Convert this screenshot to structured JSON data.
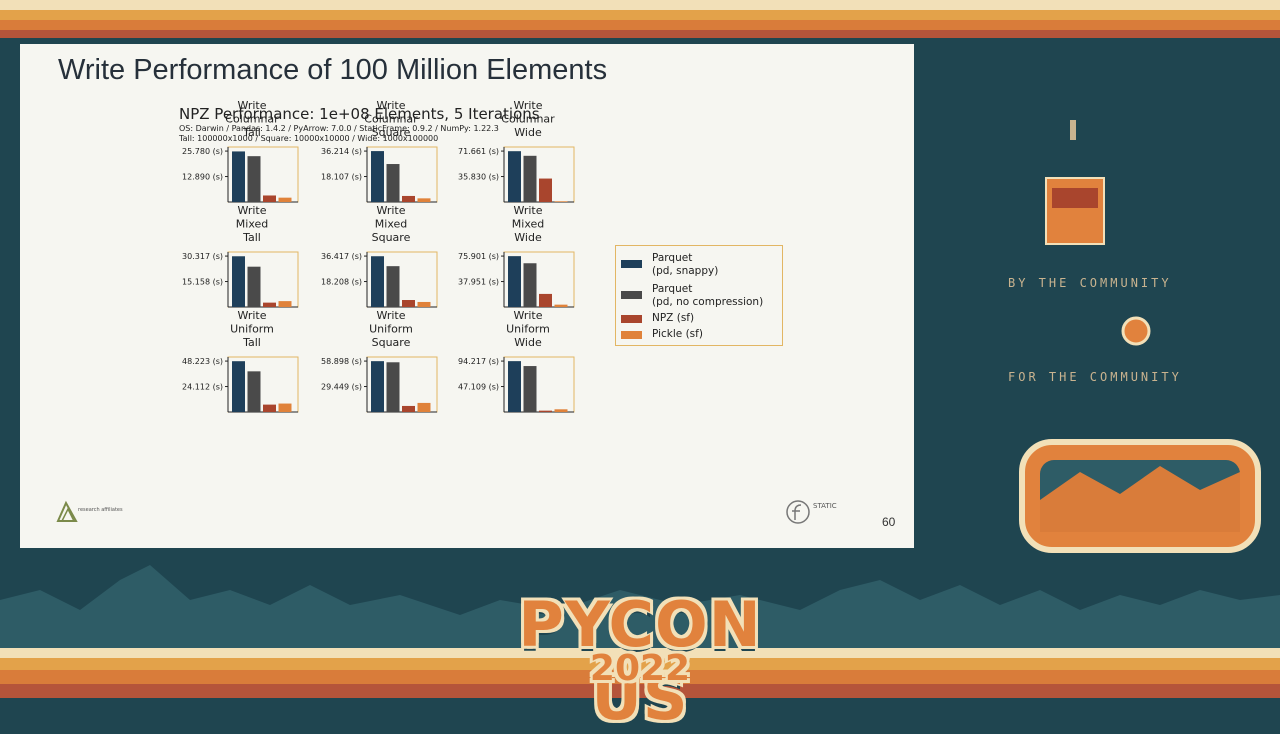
{
  "slide": {
    "title": "Write Performance of 100 Million Elements",
    "page_number": "60",
    "logo_left_text": "research affiliates",
    "logo_right_text": "STATIC"
  },
  "conference": {
    "name": "PYCON US",
    "year": "2022",
    "deco_line_1": "BY THE COMMUNITY",
    "deco_line_2": "FOR THE COMMUNITY"
  },
  "chart_data": {
    "type": "bar",
    "title": "NPZ Performance: 1e+08 Elements, 5 Iterations",
    "subtitle_lines": [
      "OS: Darwin / Pandas: 1.4.2 / PyArrow: 7.0.0 / StaticFrame: 0.9.2 / NumPy: 1.22.3",
      "Tall: 100000x1000 / Square: 10000x10000 / Wide: 1000x100000"
    ],
    "series_names": [
      "Parquet (pd, snappy)",
      "Parquet (pd, no compression)",
      "NPZ (sf)",
      "Pickle (sf)"
    ],
    "legend": [
      {
        "lines": [
          "Parquet",
          "(pd, snappy)"
        ],
        "color": "#1e3f5a"
      },
      {
        "lines": [
          "Parquet",
          "(pd, no compression)"
        ],
        "color": "#4a4a4a"
      },
      {
        "lines": [
          "NPZ (sf)"
        ],
        "color": "#a9452d"
      },
      {
        "lines": [
          "Pickle (sf)"
        ],
        "color": "#e0823a"
      }
    ],
    "legend_position": "right",
    "panels": [
      {
        "title": [
          "Write",
          "Columnar",
          "Tall"
        ],
        "ticks": [
          "25.780 (s)",
          "12.890 (s)"
        ],
        "tick_values": [
          25.78,
          12.89
        ],
        "values": [
          25.6,
          23.2,
          3.3,
          2.2
        ]
      },
      {
        "title": [
          "Write",
          "Columnar",
          "Square"
        ],
        "ticks": [
          "36.214 (s)",
          "18.107 (s)"
        ],
        "tick_values": [
          36.214,
          18.107
        ],
        "values": [
          36.2,
          27.0,
          4.3,
          2.6
        ]
      },
      {
        "title": [
          "Write",
          "Columnar",
          "Wide"
        ],
        "ticks": [
          "71.661 (s)",
          "35.830 (s)"
        ],
        "tick_values": [
          71.661,
          35.83
        ],
        "values": [
          71.5,
          65.0,
          33.0,
          1.0
        ]
      },
      {
        "title": [
          "Write",
          "Mixed",
          "Tall"
        ],
        "ticks": [
          "30.317 (s)",
          "15.158 (s)"
        ],
        "tick_values": [
          30.317,
          15.158
        ],
        "values": [
          30.2,
          24.0,
          2.6,
          3.5
        ]
      },
      {
        "title": [
          "Write",
          "Mixed",
          "Square"
        ],
        "ticks": [
          "36.417 (s)",
          "18.208 (s)"
        ],
        "tick_values": [
          36.417,
          18.208
        ],
        "values": [
          36.3,
          29.2,
          5.0,
          3.6
        ]
      },
      {
        "title": [
          "Write",
          "Mixed",
          "Wide"
        ],
        "ticks": [
          "75.901 (s)",
          "37.951 (s)"
        ],
        "tick_values": [
          75.901,
          37.951
        ],
        "values": [
          75.8,
          65.2,
          19.5,
          3.5
        ]
      },
      {
        "title": [
          "Write",
          "Uniform",
          "Tall"
        ],
        "ticks": [
          "48.223 (s)",
          "24.112 (s)"
        ],
        "tick_values": [
          48.223,
          24.112
        ],
        "values": [
          48.1,
          38.5,
          7.0,
          8.0
        ]
      },
      {
        "title": [
          "Write",
          "Uniform",
          "Square"
        ],
        "ticks": [
          "58.898 (s)",
          "29.449 (s)"
        ],
        "tick_values": [
          58.898,
          29.449
        ],
        "values": [
          58.8,
          57.5,
          7.0,
          10.5
        ]
      },
      {
        "title": [
          "Write",
          "Uniform",
          "Wide"
        ],
        "ticks": [
          "94.217 (s)",
          "47.109 (s)"
        ],
        "tick_values": [
          94.217,
          47.109
        ],
        "values": [
          94.1,
          85.0,
          2.5,
          5.0
        ]
      }
    ]
  }
}
